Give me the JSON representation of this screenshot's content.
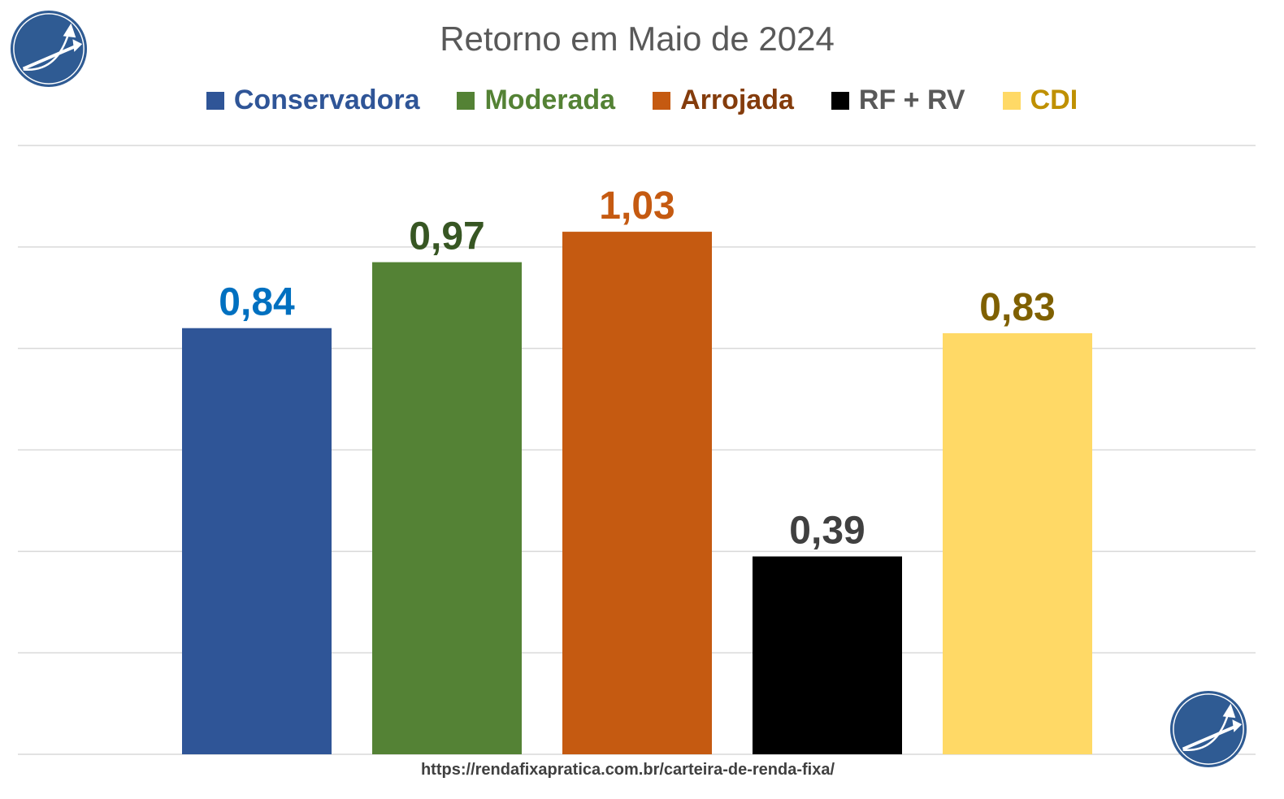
{
  "chart_data": {
    "type": "bar",
    "title": "Retorno em Maio de 2024",
    "categories": [
      "Conservadora",
      "Moderada",
      "Arrojada",
      "RF + RV",
      "CDI"
    ],
    "values": [
      0.84,
      0.97,
      1.03,
      0.39,
      0.83
    ],
    "data_labels": [
      "0,84",
      "0,97",
      "1,03",
      "0,39",
      "0,83"
    ],
    "bar_colors": [
      "#2F5597",
      "#548235",
      "#C55A11",
      "#000000",
      "#FFD966"
    ],
    "label_colors": [
      "#0070C0",
      "#375623",
      "#C55A11",
      "#404040",
      "#7F6000"
    ],
    "legend_text_colors": [
      "#2F5597",
      "#548235",
      "#843C0C",
      "#595959",
      "#BF9000"
    ],
    "legend_position": "top",
    "xlabel": "",
    "ylabel": "",
    "ylim": [
      0,
      1.2
    ],
    "grid": true,
    "grid_step": 0.2
  },
  "footer": {
    "url": "https://rendafixapratica.com.br/carteira-de-renda-fixa/"
  }
}
